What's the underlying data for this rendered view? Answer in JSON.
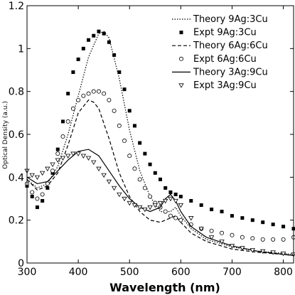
{
  "chart_data": {
    "type": "scatter",
    "title": "",
    "xlabel": "Wavelength (nm)",
    "ylabel": "Optical Density (a.u.)",
    "xlim": [
      300,
      820
    ],
    "ylim": [
      0,
      1.2
    ],
    "xticks": [
      300,
      400,
      500,
      600,
      700,
      800
    ],
    "xtick_labels": [
      "300",
      "400",
      "500",
      "600",
      "700",
      "800"
    ],
    "yticks": [
      0,
      0.2,
      0.4,
      0.6,
      0.8,
      1.0,
      1.2
    ],
    "ytick_labels": [
      "0",
      "0.2",
      "0.4",
      "0.6",
      "0.8",
      "1",
      "1.2"
    ],
    "grid": false,
    "legend_position": "top-right",
    "legend_labels": [
      "Theory 9Ag:3Cu",
      "Expt 9Ag:3Cu",
      "Theory 6Ag:6Cu",
      "Expt 6Ag:6Cu",
      "Theory 3Ag:9Cu",
      "Expt 3Ag:9Cu"
    ],
    "series": [
      {
        "name": "Theory 9Ag:3Cu",
        "kind": "line",
        "dash": "dotted",
        "x": [
          300,
          320,
          340,
          360,
          380,
          400,
          420,
          440,
          450,
          460,
          480,
          500,
          520,
          540,
          560,
          580,
          590,
          600,
          620,
          650,
          700,
          750,
          800,
          820
        ],
        "y": [
          0.39,
          0.35,
          0.37,
          0.45,
          0.6,
          0.78,
          0.96,
          1.07,
          1.08,
          1.05,
          0.86,
          0.62,
          0.43,
          0.31,
          0.24,
          0.24,
          0.26,
          0.22,
          0.16,
          0.11,
          0.075,
          0.055,
          0.045,
          0.04
        ]
      },
      {
        "name": "Expt 9Ag:3Cu",
        "kind": "marker",
        "marker": "filled-square",
        "x": [
          300,
          310,
          320,
          330,
          340,
          350,
          360,
          370,
          380,
          390,
          400,
          410,
          420,
          430,
          440,
          450,
          460,
          470,
          480,
          490,
          500,
          510,
          520,
          530,
          540,
          550,
          560,
          570,
          580,
          590,
          600,
          620,
          640,
          660,
          680,
          700,
          720,
          740,
          760,
          780,
          800,
          820
        ],
        "y": [
          0.36,
          0.31,
          0.26,
          0.29,
          0.35,
          0.42,
          0.53,
          0.66,
          0.79,
          0.89,
          0.95,
          1.0,
          1.04,
          1.06,
          1.08,
          1.07,
          1.03,
          0.97,
          0.89,
          0.81,
          0.71,
          0.64,
          0.56,
          0.51,
          0.46,
          0.42,
          0.39,
          0.35,
          0.33,
          0.32,
          0.31,
          0.29,
          0.27,
          0.25,
          0.24,
          0.22,
          0.21,
          0.2,
          0.19,
          0.18,
          0.17,
          0.16
        ]
      },
      {
        "name": "Theory 6Ag:6Cu",
        "kind": "line",
        "dash": "dashed",
        "x": [
          300,
          320,
          340,
          360,
          380,
          400,
          420,
          430,
          440,
          460,
          480,
          500,
          520,
          540,
          560,
          580,
          590,
          600,
          620,
          650,
          700,
          750,
          800,
          820
        ],
        "y": [
          0.39,
          0.34,
          0.36,
          0.42,
          0.55,
          0.7,
          0.76,
          0.75,
          0.72,
          0.58,
          0.42,
          0.31,
          0.24,
          0.2,
          0.19,
          0.21,
          0.22,
          0.19,
          0.14,
          0.1,
          0.065,
          0.05,
          0.04,
          0.035
        ]
      },
      {
        "name": "Expt 6Ag:6Cu",
        "kind": "marker",
        "marker": "open-circle",
        "x": [
          300,
          310,
          320,
          330,
          340,
          350,
          360,
          370,
          380,
          390,
          400,
          410,
          420,
          430,
          440,
          450,
          460,
          470,
          480,
          490,
          500,
          510,
          520,
          530,
          540,
          550,
          560,
          570,
          580,
          590,
          600,
          620,
          640,
          660,
          680,
          700,
          720,
          740,
          760,
          780,
          800,
          820
        ],
        "y": [
          0.37,
          0.33,
          0.3,
          0.32,
          0.37,
          0.43,
          0.51,
          0.59,
          0.66,
          0.72,
          0.76,
          0.78,
          0.79,
          0.8,
          0.8,
          0.79,
          0.76,
          0.71,
          0.64,
          0.57,
          0.5,
          0.44,
          0.39,
          0.35,
          0.31,
          0.28,
          0.26,
          0.24,
          0.22,
          0.21,
          0.2,
          0.18,
          0.16,
          0.15,
          0.14,
          0.13,
          0.12,
          0.115,
          0.11,
          0.11,
          0.11,
          0.12
        ]
      },
      {
        "name": "Theory 3Ag:9Cu",
        "kind": "line",
        "dash": "solid",
        "x": [
          300,
          320,
          340,
          360,
          380,
          400,
          420,
          440,
          460,
          480,
          500,
          520,
          540,
          560,
          570,
          580,
          590,
          600,
          620,
          650,
          700,
          750,
          800,
          820
        ],
        "y": [
          0.4,
          0.37,
          0.38,
          0.43,
          0.48,
          0.52,
          0.53,
          0.5,
          0.43,
          0.36,
          0.3,
          0.26,
          0.24,
          0.26,
          0.3,
          0.32,
          0.29,
          0.24,
          0.17,
          0.12,
          0.08,
          0.055,
          0.04,
          0.035
        ]
      },
      {
        "name": "Expt 3Ag:9Cu",
        "kind": "marker",
        "marker": "open-triangle-down",
        "x": [
          300,
          310,
          320,
          330,
          340,
          350,
          360,
          370,
          380,
          390,
          400,
          410,
          420,
          430,
          440,
          450,
          460,
          470,
          480,
          490,
          500,
          510,
          520,
          530,
          540,
          550,
          560,
          570,
          580,
          590,
          600,
          620,
          640,
          660,
          680,
          700,
          720,
          740,
          760,
          780,
          800,
          820
        ],
        "y": [
          0.43,
          0.41,
          0.4,
          0.42,
          0.44,
          0.46,
          0.48,
          0.49,
          0.5,
          0.51,
          0.51,
          0.5,
          0.49,
          0.47,
          0.44,
          0.41,
          0.38,
          0.35,
          0.32,
          0.3,
          0.28,
          0.27,
          0.26,
          0.25,
          0.26,
          0.27,
          0.28,
          0.29,
          0.3,
          0.29,
          0.27,
          0.21,
          0.16,
          0.12,
          0.1,
          0.08,
          0.07,
          0.06,
          0.055,
          0.05,
          0.045,
          0.04
        ]
      }
    ]
  }
}
